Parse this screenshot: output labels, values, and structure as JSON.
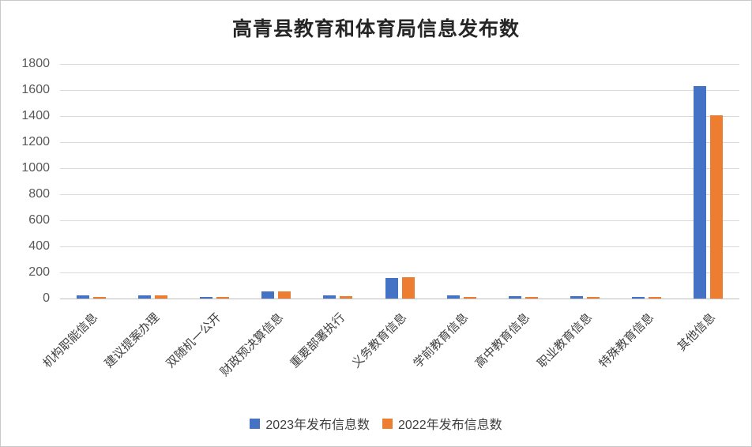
{
  "window": {
    "background": "#ffffff",
    "border_color": "#c9c9c9"
  },
  "chart_data": {
    "type": "bar",
    "title": "高青县教育和体育局信息发布数",
    "categories": [
      "机构职能信息",
      "建议提案办理",
      "双随机一公开",
      "财政预决算信息",
      "重要部署执行",
      "义务教育信息",
      "学前教育信息",
      "高中教育信息",
      "职业教育信息",
      "特殊教育信息",
      "其他信息"
    ],
    "series": [
      {
        "name": "2023年发布信息数",
        "color": "#4472C4",
        "values": [
          22,
          22,
          13,
          55,
          22,
          160,
          25,
          17,
          17,
          14,
          1632
        ]
      },
      {
        "name": "2022年发布信息数",
        "color": "#ED7D31",
        "values": [
          14,
          22,
          10,
          52,
          18,
          165,
          15,
          15,
          14,
          13,
          1406
        ]
      }
    ],
    "xlabel": "",
    "ylabel": "",
    "ylim": [
      0,
      1800
    ],
    "yticks": [
      0,
      200,
      400,
      600,
      800,
      1000,
      1200,
      1400,
      1600,
      1800
    ],
    "grid": true,
    "legend_position": "bottom",
    "colors": {
      "gridline": "#d9d9d9",
      "axis_line": "#bfbfbf",
      "y_tick_label": "#595959",
      "category_label": "#404040",
      "title": "#262626"
    }
  }
}
